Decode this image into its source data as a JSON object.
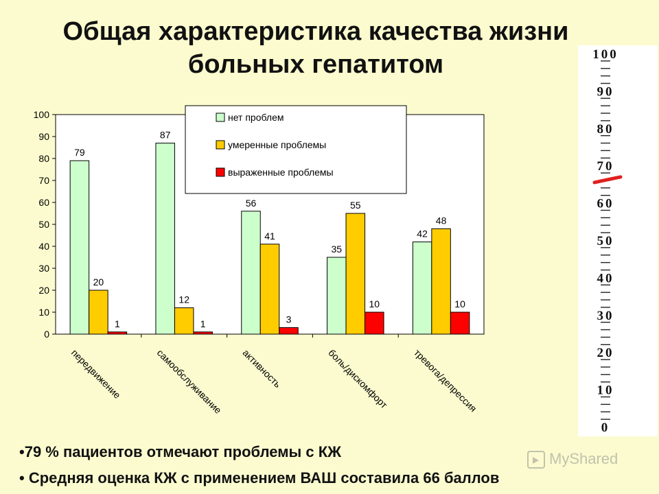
{
  "title": "Общая характеристика качества жизни больных гепатитом",
  "chart_data": {
    "type": "bar",
    "categories": [
      "передвижение",
      "самообслуживание",
      "активность",
      "боль/дискомфорт",
      "тревога/депрессия"
    ],
    "series": [
      {
        "name": "нет проблем",
        "values": [
          79,
          87,
          56,
          35,
          42
        ],
        "color": "#ccffcc"
      },
      {
        "name": "умеренные проблемы",
        "values": [
          20,
          12,
          41,
          55,
          48
        ],
        "color": "#ffcc00"
      },
      {
        "name": "выраженные проблемы",
        "values": [
          1,
          1,
          3,
          10,
          10
        ],
        "color": "#ff0000"
      }
    ],
    "ylim": [
      0,
      100
    ],
    "yticks": [
      0,
      10,
      20,
      30,
      40,
      50,
      60,
      70,
      80,
      90,
      100
    ],
    "legend": "top-center",
    "grid": false
  },
  "bullets": [
    "•79 % пациентов отмечают проблемы с КЖ",
    "• Средняя оценка КЖ с применением ВАШ составила 66 баллов"
  ],
  "vas_scale": {
    "labels": [
      "100",
      "90",
      "80",
      "70",
      "60",
      "50",
      "40",
      "30",
      "20",
      "10",
      "0"
    ],
    "marked_value": 66
  },
  "watermark": "MyShared"
}
